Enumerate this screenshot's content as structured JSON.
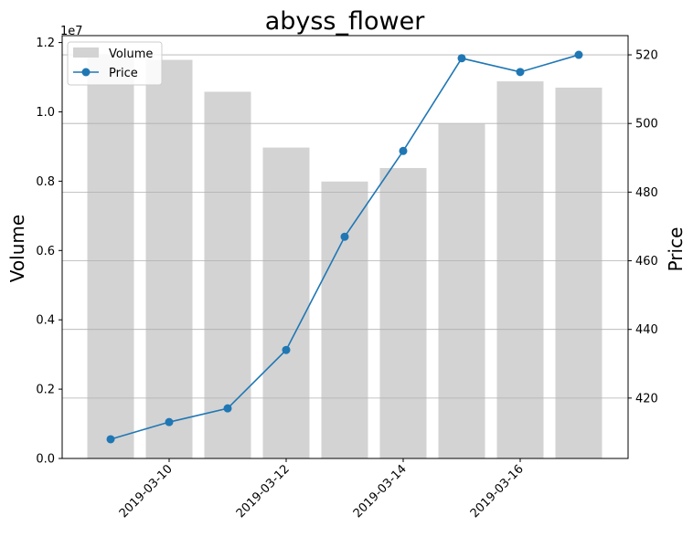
{
  "chart_data": {
    "type": "bar+line",
    "title": "abyss_flower",
    "x": [
      "2019-03-09",
      "2019-03-10",
      "2019-03-11",
      "2019-03-12",
      "2019-03-13",
      "2019-03-14",
      "2019-03-15",
      "2019-03-16",
      "2019-03-17"
    ],
    "x_tick_labels": [
      "2019-03-10",
      "2019-03-12",
      "2019-03-14",
      "2019-03-16"
    ],
    "series": [
      {
        "name": "Volume",
        "type": "bar",
        "axis": "left",
        "color": "#d3d3d3",
        "values": [
          11620000,
          11500000,
          10580000,
          8970000,
          7990000,
          8380000,
          9650000,
          10880000,
          10700000
        ]
      },
      {
        "name": "Price",
        "type": "line",
        "axis": "right",
        "color": "#1f77b4",
        "values": [
          408,
          413,
          417,
          434,
          467,
          492,
          519,
          515,
          520
        ]
      }
    ],
    "left_axis": {
      "label": "Volume",
      "multiplier_label": "1e7",
      "ylim": [
        0,
        12200000
      ],
      "ticks": [
        0,
        2000000,
        4000000,
        6000000,
        8000000,
        10000000,
        12000000
      ],
      "tick_labels": [
        "0.0",
        "0.2",
        "0.4",
        "0.6",
        "0.8",
        "1.0",
        "1.2"
      ]
    },
    "right_axis": {
      "label": "Price",
      "ylim": [
        402.4,
        525.6
      ],
      "ticks": [
        420,
        440,
        460,
        480,
        500,
        520
      ],
      "tick_labels": [
        "420",
        "440",
        "460",
        "480",
        "500",
        "520"
      ]
    },
    "grid": "horizontal (right axis)",
    "legend": {
      "placement": "upper-left",
      "entries": [
        "Volume",
        "Price"
      ]
    }
  }
}
